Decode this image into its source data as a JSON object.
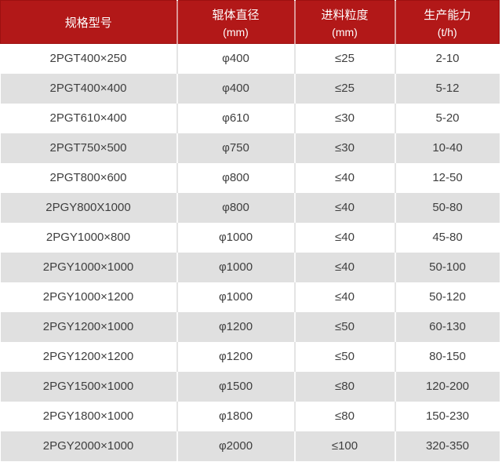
{
  "colors": {
    "header_bg": "#b21818",
    "header_border": "#9c1111",
    "header_text": "#ffffff",
    "row_bg": "#ffffff",
    "row_alt_bg": "#e0e0e0",
    "divider_on_white": "#e4e4e4",
    "divider_on_gray": "#fafafa",
    "body_text": "#3f3f3f"
  },
  "chart_data": {
    "type": "table",
    "title": "",
    "columns": [
      {
        "key": "model",
        "label": "规格型号",
        "unit": ""
      },
      {
        "key": "roller-diameter",
        "label": "辊体直径",
        "unit": "(mm)"
      },
      {
        "key": "feed-size",
        "label": "进料粒度",
        "unit": "(mm)"
      },
      {
        "key": "capacity",
        "label": "生产能力",
        "unit": "(t/h)"
      }
    ],
    "rows": [
      [
        "2PGT400×250",
        "φ400",
        "≤25",
        "2-10"
      ],
      [
        "2PGT400×400",
        "φ400",
        "≤25",
        "5-12"
      ],
      [
        "2PGT610×400",
        "φ610",
        "≤30",
        "5-20"
      ],
      [
        "2PGT750×500",
        "φ750",
        "≤30",
        "10-40"
      ],
      [
        "2PGT800×600",
        "φ800",
        "≤40",
        "12-50"
      ],
      [
        "2PGY800X1000",
        "φ800",
        "≤40",
        "50-80"
      ],
      [
        "2PGY1000×800",
        "φ1000",
        "≤40",
        "45-80"
      ],
      [
        "2PGY1000×1000",
        "φ1000",
        "≤40",
        "50-100"
      ],
      [
        "2PGY1000×1200",
        "φ1000",
        "≤40",
        "50-120"
      ],
      [
        "2PGY1200×1000",
        "φ1200",
        "≤50",
        "60-130"
      ],
      [
        "2PGY1200×1200",
        "φ1200",
        "≤50",
        "80-150"
      ],
      [
        "2PGY1500×1000",
        "φ1500",
        "≤80",
        "120-200"
      ],
      [
        "2PGY1800×1000",
        "φ1800",
        "≤80",
        "150-230"
      ],
      [
        "2PGY2000×1000",
        "φ2000",
        "≤100",
        "320-350"
      ]
    ]
  }
}
